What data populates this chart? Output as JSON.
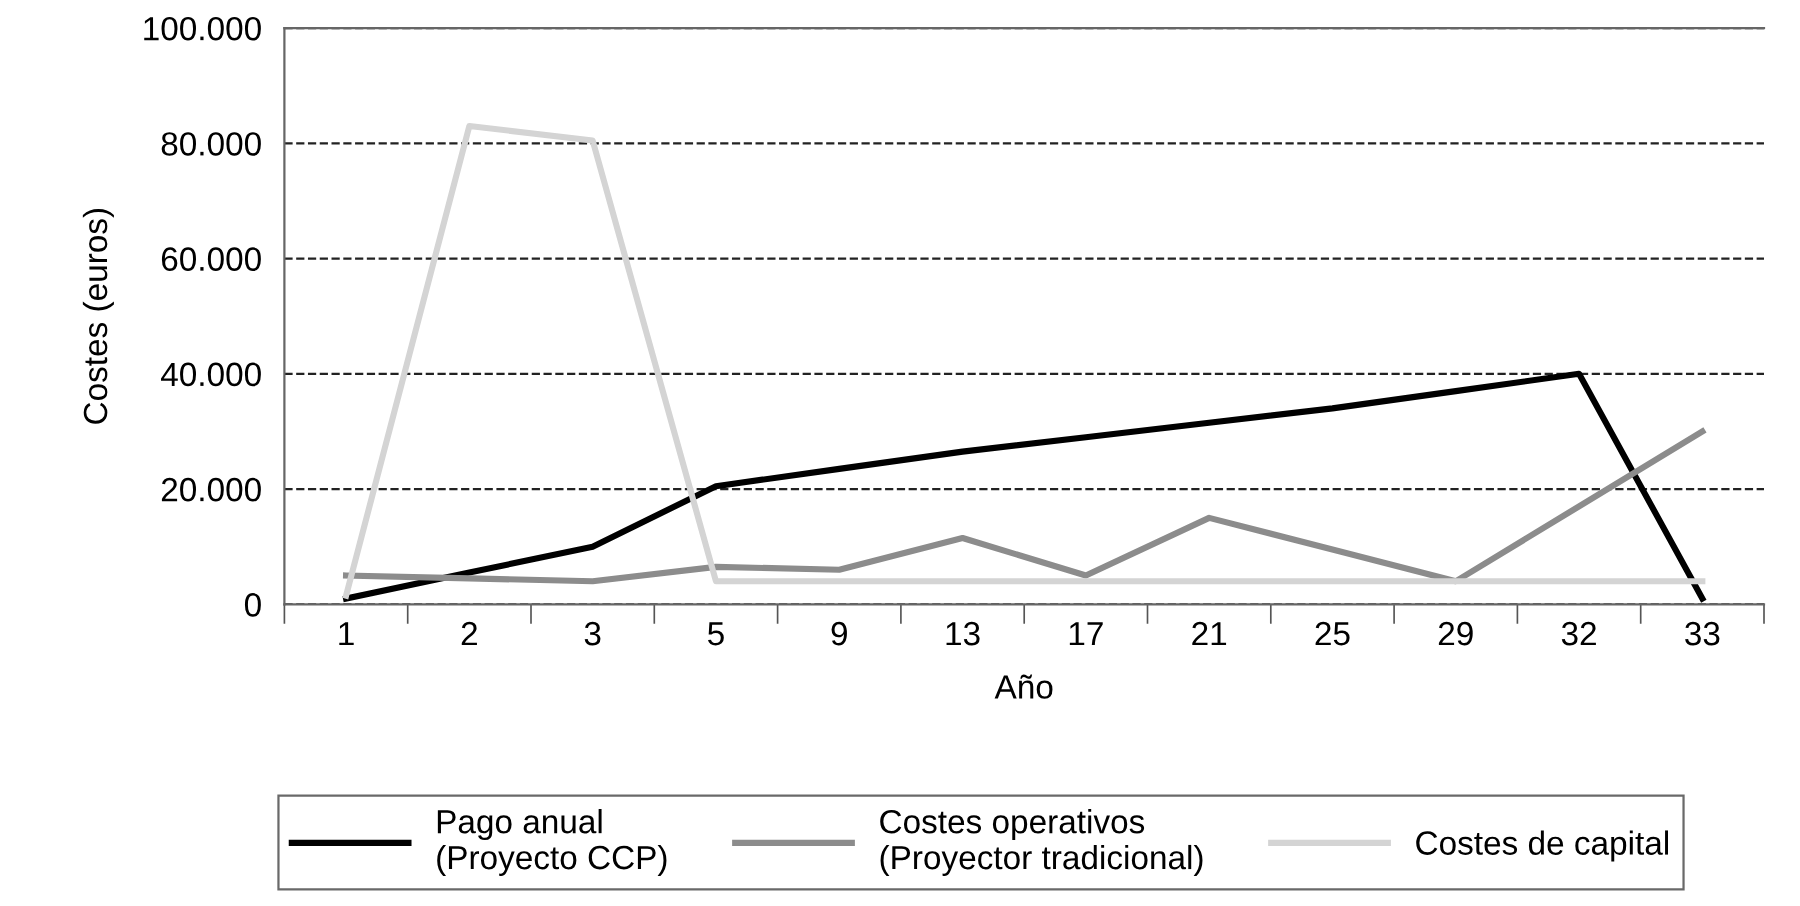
{
  "chart_data": {
    "type": "line",
    "xlabel": "Año",
    "ylabel": "Costes (euros)",
    "categories": [
      "1",
      "2",
      "3",
      "5",
      "9",
      "13",
      "17",
      "21",
      "25",
      "29",
      "32",
      "33"
    ],
    "series": [
      {
        "name": "Pago anual\n(Proyecto CCP)",
        "color": "#000000",
        "values": [
          1000,
          5500,
          10000,
          20500,
          23500,
          26500,
          29000,
          31500,
          34000,
          37000,
          40000,
          1000
        ]
      },
      {
        "name": "Costes operativos\n(Proyector tradicional)",
        "color": "#8c8c8c",
        "values": [
          5000,
          4500,
          4000,
          6500,
          6000,
          11500,
          5000,
          15000,
          9500,
          4000,
          17000,
          30000
        ]
      },
      {
        "name": "Costes de capital",
        "color": "#d4d4d4",
        "values": [
          1500,
          83000,
          80500,
          4000,
          4000,
          4000,
          4000,
          4000,
          4000,
          4000,
          4000,
          4000
        ]
      }
    ],
    "ylim": [
      0,
      100000
    ],
    "yticks": [
      {
        "value": 0,
        "label": "0"
      },
      {
        "value": 20000,
        "label": "20.000"
      },
      {
        "value": 40000,
        "label": "40.000"
      },
      {
        "value": 60000,
        "label": "60.000"
      },
      {
        "value": 80000,
        "label": "80.000"
      },
      {
        "value": 100000,
        "label": "100.000"
      }
    ],
    "grid": "y",
    "legend": "bottom",
    "line_style": "solid",
    "marker": "none"
  }
}
